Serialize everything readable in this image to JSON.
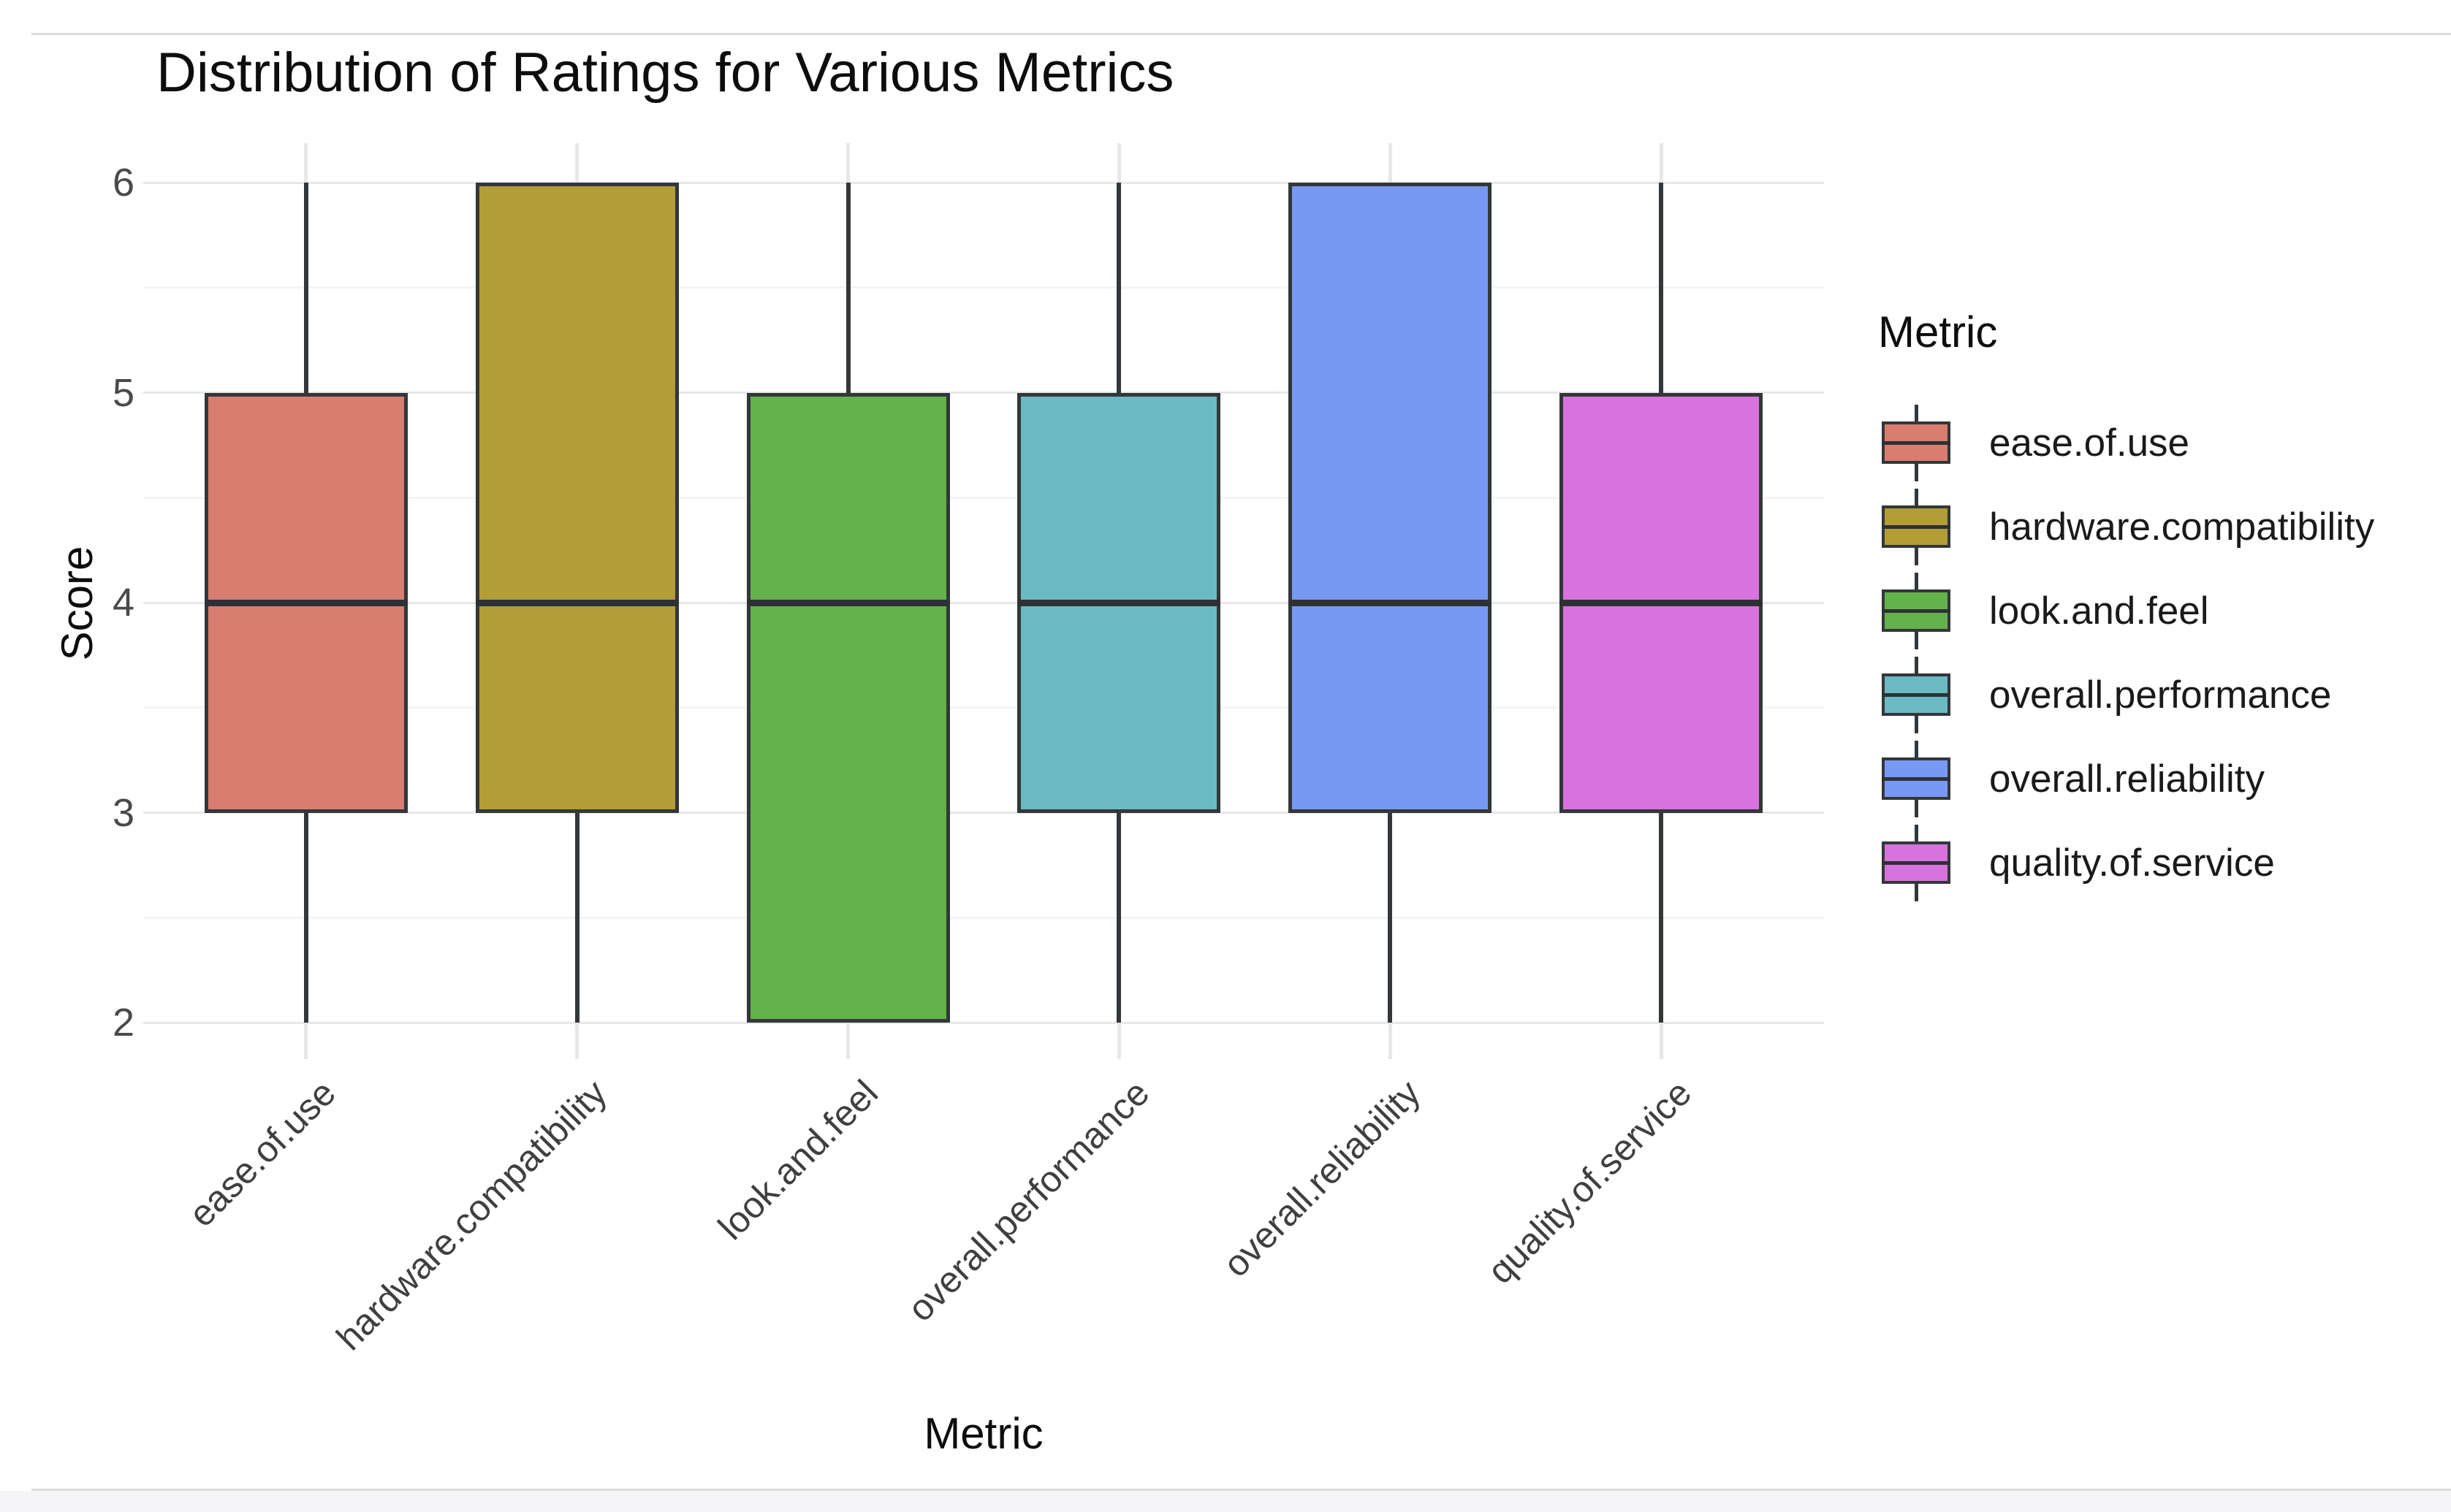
{
  "chart": {
    "title": "Distribution of Ratings for Various Metrics",
    "x_axis": {
      "label": "Metric",
      "tick_rotation_deg": 45
    },
    "y_axis": {
      "label": "Score",
      "ticks": [
        2,
        3,
        4,
        5,
        6
      ],
      "minor_ticks": [
        2.5,
        3.5,
        4.5,
        5.5
      ],
      "range": [
        1.82,
        6.19
      ]
    },
    "legend": {
      "title": "Metric",
      "position": "right"
    },
    "colors": {
      "stroke": "#33373a",
      "median": "#2d3135",
      "grid_major": "#e7e7e7",
      "grid_minor": "#f4f4f4",
      "frame_line": "#dbdbdb",
      "background": "#ffffff"
    }
  },
  "chart_data": {
    "type": "boxplot",
    "title": "Distribution of Ratings for Various Metrics",
    "xlabel": "Metric",
    "ylabel": "Score",
    "ylim": [
      1.82,
      6.19
    ],
    "grid": true,
    "legend_position": "right",
    "categories": [
      "ease.of.use",
      "hardware.compatibility",
      "look.and.feel",
      "overall.performance",
      "overall.reliability",
      "quality.of.service"
    ],
    "series": [
      {
        "name": "ease.of.use",
        "color": "#d97d70",
        "min": 2,
        "q1": 3,
        "median": 4,
        "q3": 5,
        "max": 6
      },
      {
        "name": "hardware.compatibility",
        "color": "#b29d36",
        "min": 2,
        "q1": 3,
        "median": 4,
        "q3": 6,
        "max": 6
      },
      {
        "name": "look.and.feel",
        "color": "#63b34a",
        "min": 2,
        "q1": 2,
        "median": 4,
        "q3": 5,
        "max": 6
      },
      {
        "name": "overall.performance",
        "color": "#6abac1",
        "min": 2,
        "q1": 3,
        "median": 4,
        "q3": 5,
        "max": 6
      },
      {
        "name": "overall.reliability",
        "color": "#7899f3",
        "min": 2,
        "q1": 3,
        "median": 4,
        "q3": 6,
        "max": 6
      },
      {
        "name": "quality.of.service",
        "color": "#d873de",
        "min": 2,
        "q1": 3,
        "median": 4,
        "q3": 5,
        "max": 6
      }
    ]
  }
}
